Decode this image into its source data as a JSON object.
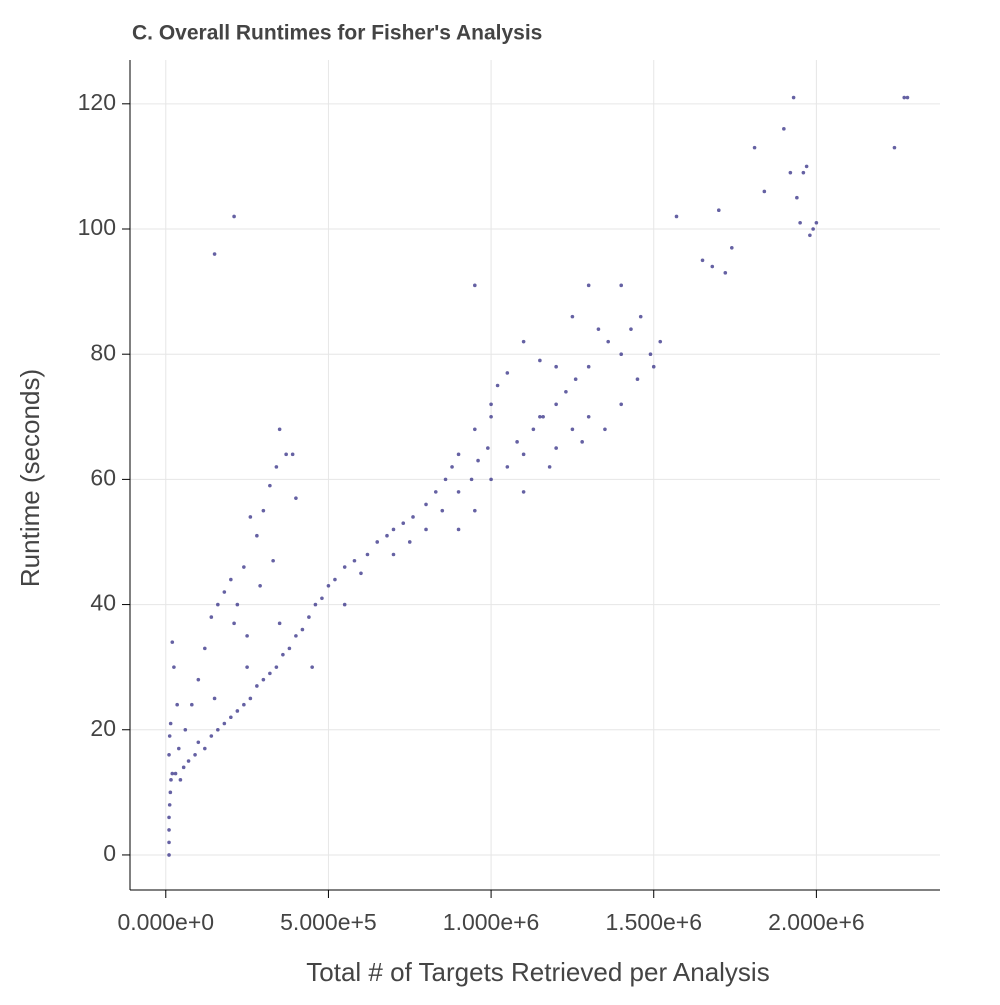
{
  "chart_data": {
    "type": "scatter",
    "title": "C. Overall Runtimes for Fisher's Analysis",
    "xlabel": "Total # of Targets Retrieved per Analysis",
    "ylabel": "Runtime (seconds)",
    "color": "#3f3a8c",
    "grid": true,
    "xlim": [
      -110000,
      2380000
    ],
    "ylim": [
      -5.6,
      127
    ],
    "xticks": [
      {
        "value": 0,
        "label": "0.000e+0"
      },
      {
        "value": 500000,
        "label": "5.000e+5"
      },
      {
        "value": 1000000,
        "label": "1.000e+6"
      },
      {
        "value": 1500000,
        "label": "1.500e+6"
      },
      {
        "value": 2000000,
        "label": "2.000e+6"
      }
    ],
    "yticks": [
      0,
      20,
      40,
      60,
      80,
      100,
      120
    ],
    "x": [
      10000,
      10000,
      10000,
      10000,
      12000,
      14000,
      16000,
      20000,
      30000,
      10000,
      12000,
      15000,
      20000,
      25000,
      35000,
      45000,
      55000,
      70000,
      90000,
      100000,
      120000,
      140000,
      160000,
      180000,
      200000,
      220000,
      240000,
      260000,
      280000,
      300000,
      320000,
      340000,
      360000,
      380000,
      400000,
      420000,
      440000,
      460000,
      480000,
      500000,
      520000,
      550000,
      580000,
      620000,
      650000,
      680000,
      700000,
      730000,
      760000,
      800000,
      830000,
      860000,
      880000,
      900000,
      940000,
      960000,
      990000,
      1000000,
      1020000,
      1050000,
      1080000,
      1100000,
      1130000,
      1160000,
      1200000,
      1230000,
      1260000,
      1300000,
      1330000,
      1360000,
      1400000,
      1430000,
      1460000,
      1490000,
      1520000,
      150000,
      250000,
      350000,
      450000,
      550000,
      600000,
      700000,
      750000,
      800000,
      850000,
      900000,
      950000,
      1000000,
      1050000,
      1100000,
      1150000,
      1200000,
      1250000,
      1300000,
      1350000,
      1400000,
      1450000,
      1500000,
      1200000,
      1300000,
      1400000,
      1250000,
      1100000,
      1150000,
      900000,
      1000000,
      950000,
      1280000,
      1180000,
      40000,
      60000,
      80000,
      100000,
      120000,
      140000,
      160000,
      180000,
      200000,
      220000,
      240000,
      260000,
      280000,
      300000,
      320000,
      340000,
      350000,
      370000,
      390000,
      400000,
      290000,
      330000,
      210000,
      250000,
      150000,
      210000,
      950000,
      1570000,
      1650000,
      1680000,
      1720000,
      1740000,
      1700000,
      1810000,
      1840000,
      1900000,
      1930000,
      1920000,
      1940000,
      1960000,
      1970000,
      1950000,
      1980000,
      2000000,
      1990000,
      2240000,
      2270000,
      2280000
    ],
    "values": [
      0,
      2,
      4,
      6,
      8,
      10,
      12,
      13,
      13,
      16,
      19,
      21,
      34,
      30,
      24,
      12,
      14,
      15,
      16,
      18,
      17,
      19,
      20,
      21,
      22,
      23,
      24,
      25,
      27,
      28,
      29,
      30,
      32,
      33,
      35,
      36,
      38,
      40,
      41,
      43,
      44,
      46,
      47,
      48,
      50,
      51,
      52,
      53,
      54,
      56,
      58,
      60,
      62,
      58,
      60,
      63,
      65,
      70,
      75,
      77,
      66,
      64,
      68,
      70,
      72,
      74,
      76,
      78,
      84,
      82,
      80,
      84,
      86,
      80,
      82,
      25,
      30,
      37,
      30,
      40,
      45,
      48,
      50,
      52,
      55,
      52,
      55,
      60,
      62,
      58,
      70,
      65,
      68,
      70,
      68,
      72,
      76,
      78,
      78,
      91,
      91,
      86,
      82,
      79,
      64,
      72,
      68,
      66,
      62,
      17,
      20,
      24,
      28,
      33,
      38,
      40,
      42,
      44,
      40,
      46,
      54,
      51,
      55,
      59,
      62,
      68,
      64,
      64,
      57,
      43,
      47,
      37,
      35,
      96,
      102,
      91,
      102,
      95,
      94,
      93,
      97,
      103,
      113,
      106,
      116,
      121,
      109,
      105,
      109,
      110,
      101,
      99,
      101,
      100,
      113,
      121,
      121
    ]
  }
}
